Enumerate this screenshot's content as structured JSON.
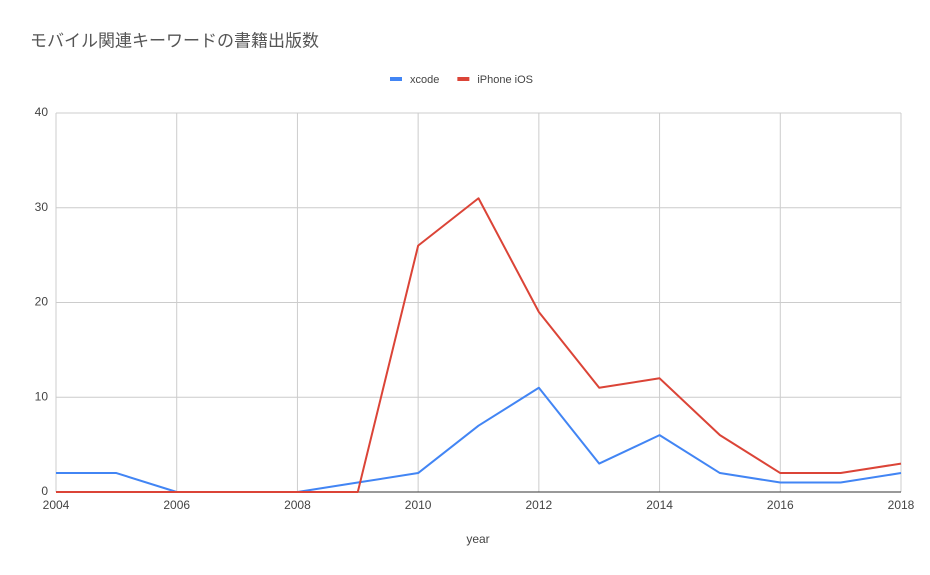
{
  "chart_data": {
    "type": "line",
    "title": "モバイル関連キーワードの書籍出版数",
    "x_label": "year",
    "x": [
      2004,
      2005,
      2006,
      2007,
      2008,
      2009,
      2010,
      2011,
      2012,
      2013,
      2014,
      2015,
      2016,
      2017,
      2018
    ],
    "series": [
      {
        "name": "xcode",
        "color": "#4285f4",
        "values": [
          2,
          2,
          0,
          0,
          0,
          1,
          2,
          7,
          11,
          3,
          6,
          2,
          1,
          1,
          2
        ]
      },
      {
        "name": "iPhone iOS",
        "color": "#db4437",
        "values": [
          0,
          0,
          0,
          0,
          0,
          0,
          26,
          31,
          19,
          11,
          12,
          6,
          2,
          2,
          3
        ]
      }
    ],
    "xlim": [
      2004,
      2018
    ],
    "xticks": [
      2004,
      2006,
      2008,
      2010,
      2012,
      2014,
      2016,
      2018
    ],
    "ylim": [
      0,
      40
    ],
    "yticks": [
      0,
      10,
      20,
      30,
      40
    ],
    "grid": true,
    "legend": "top"
  }
}
